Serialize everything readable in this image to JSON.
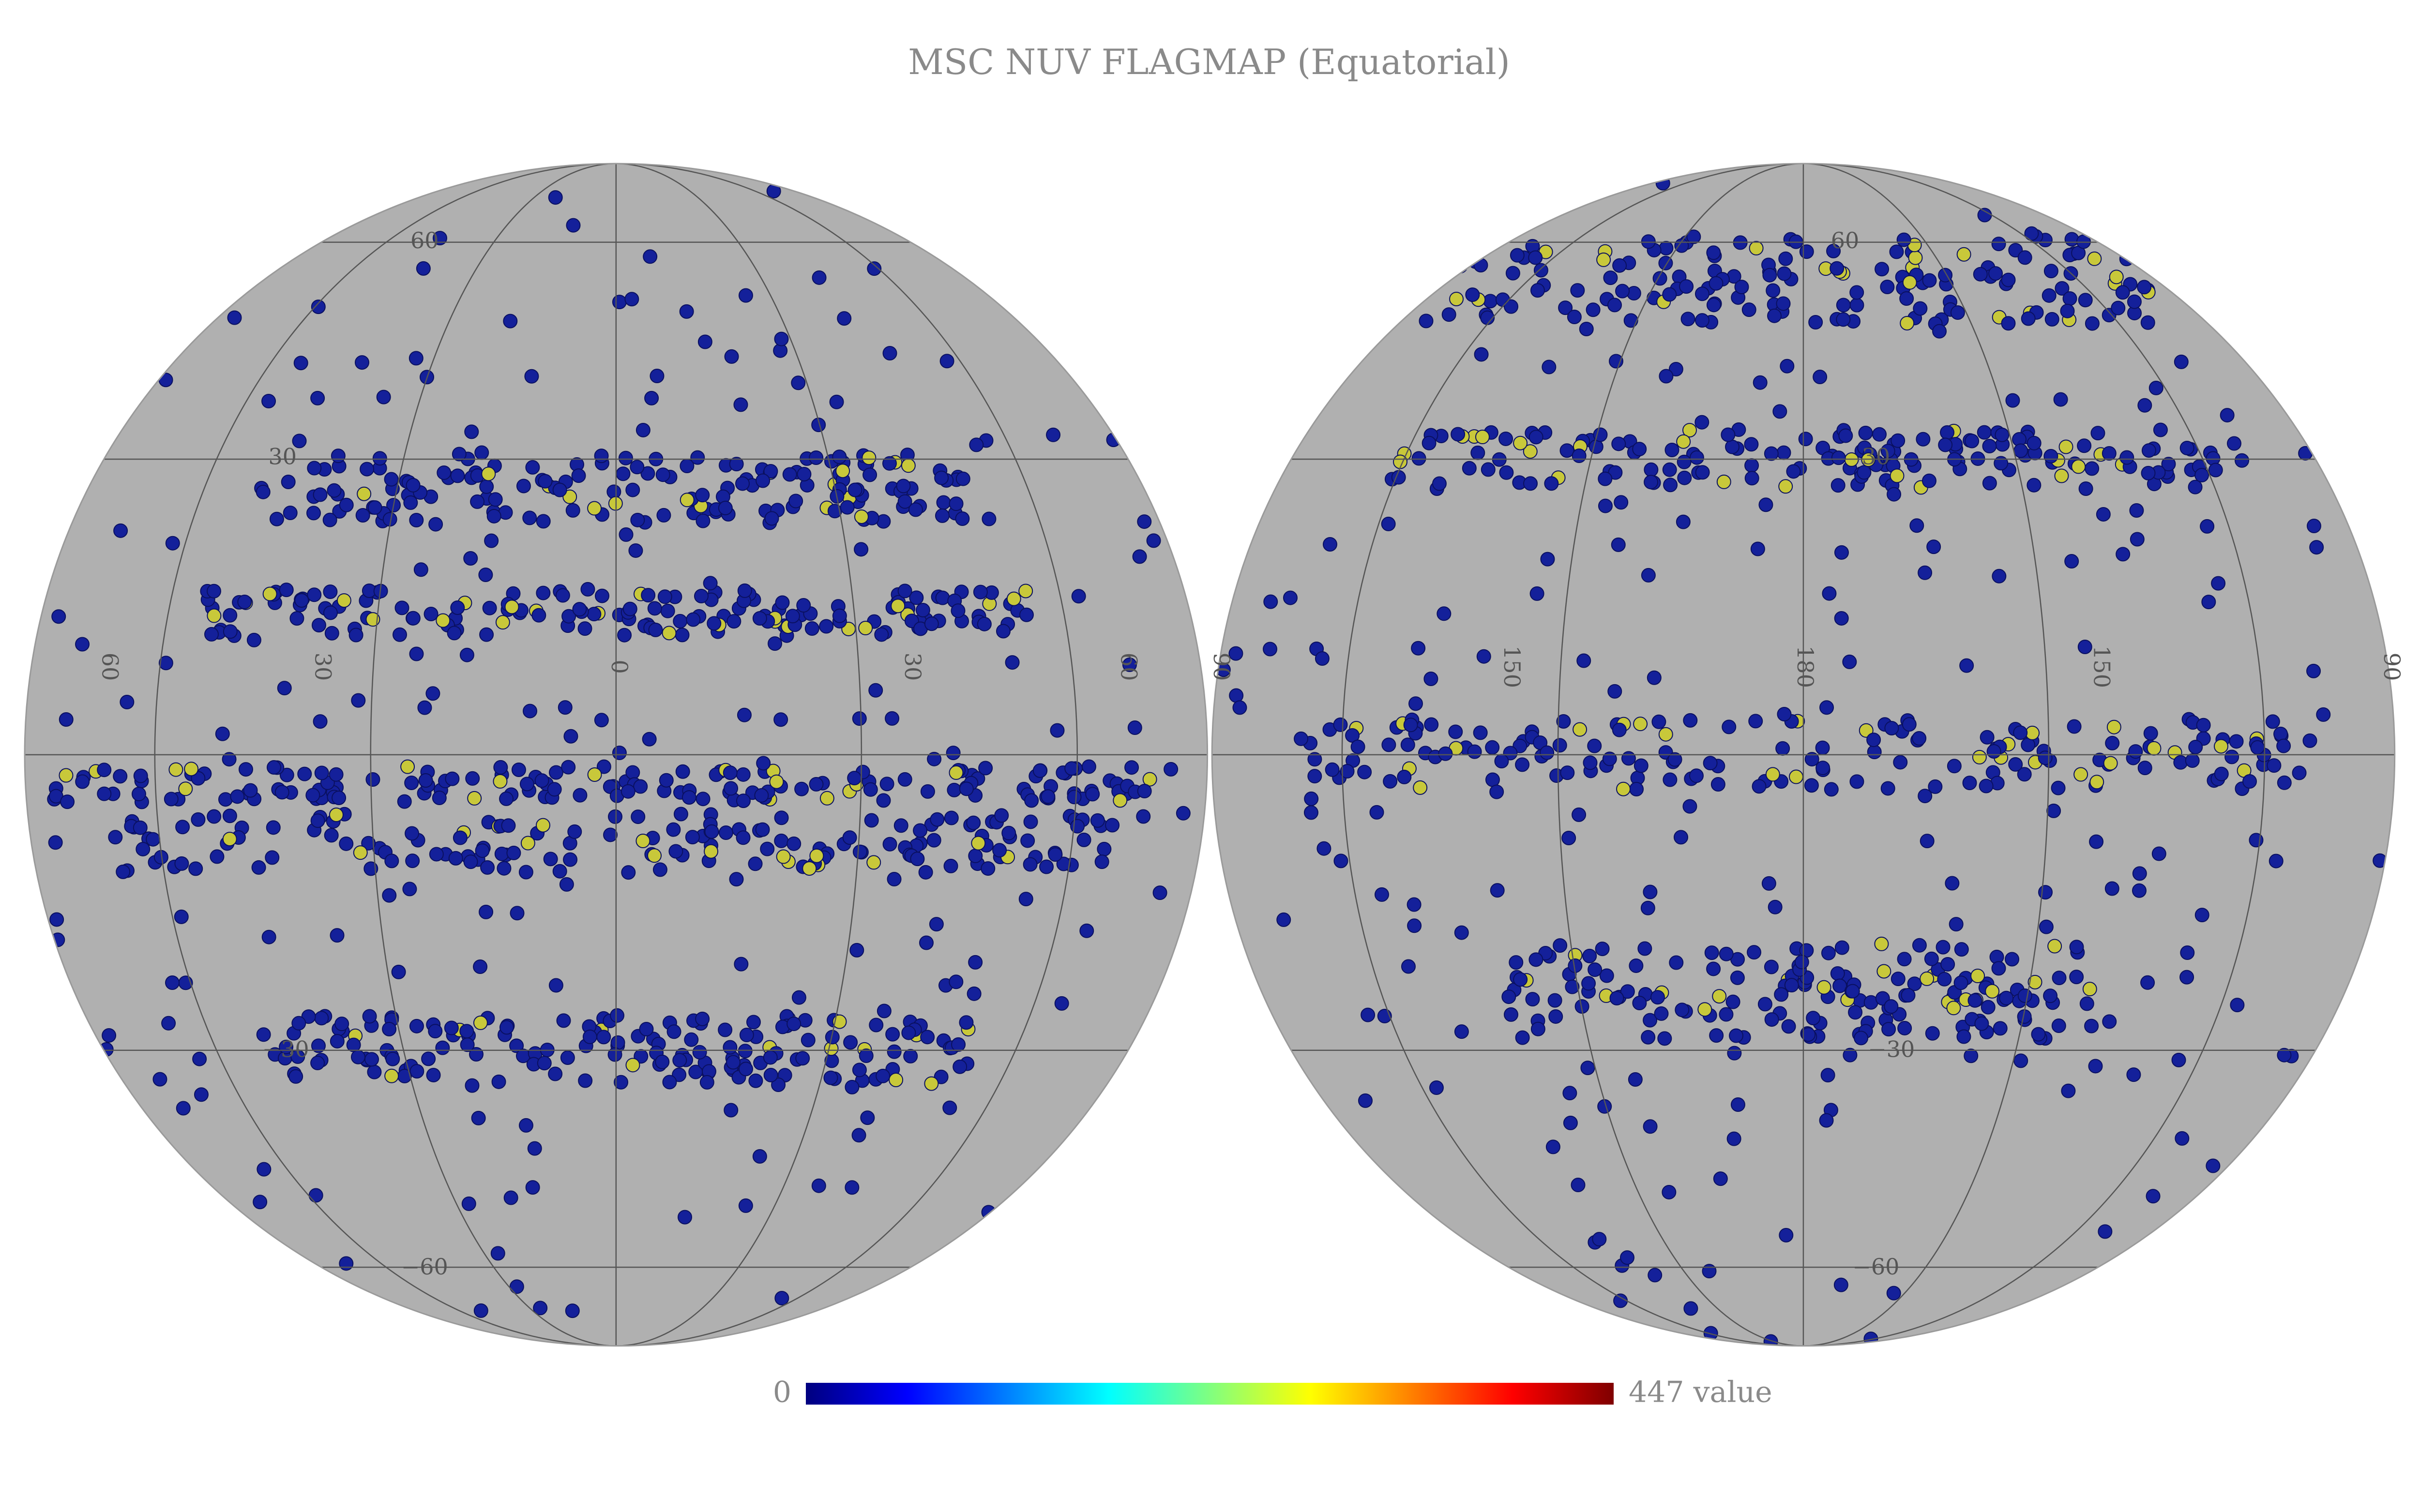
{
  "title": "MSC NUV FLAGMAP (Equatorial)",
  "colorbar": {
    "min_label": "0",
    "max_label": "447 value",
    "colormap": [
      "#00007f",
      "#0000ff",
      "#0080ff",
      "#00ffff",
      "#80ff80",
      "#ffff00",
      "#ff8000",
      "#ff0000",
      "#7f0000"
    ]
  },
  "left_hemisphere": {
    "lon_labels": [
      "60",
      "30",
      "0",
      "30",
      "60"
    ],
    "lat_labels": [
      "60",
      "30",
      "−30",
      "−60"
    ]
  },
  "right_hemisphere": {
    "lon_labels": [
      "90",
      "150",
      "180",
      "150",
      "90"
    ],
    "lat_labels": [
      "60",
      "30",
      "−30",
      "−60"
    ]
  }
}
